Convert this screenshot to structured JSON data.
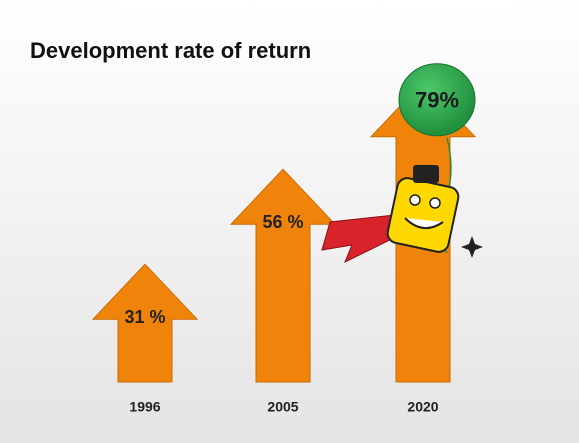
{
  "chart_data": {
    "type": "bar",
    "title": "Development rate of return",
    "categories": [
      "1996",
      "2005",
      "2020"
    ],
    "values": [
      31,
      56,
      79
    ],
    "value_labels": [
      "31 %",
      "56 %",
      "79%"
    ],
    "color": "#f0840a"
  }
}
